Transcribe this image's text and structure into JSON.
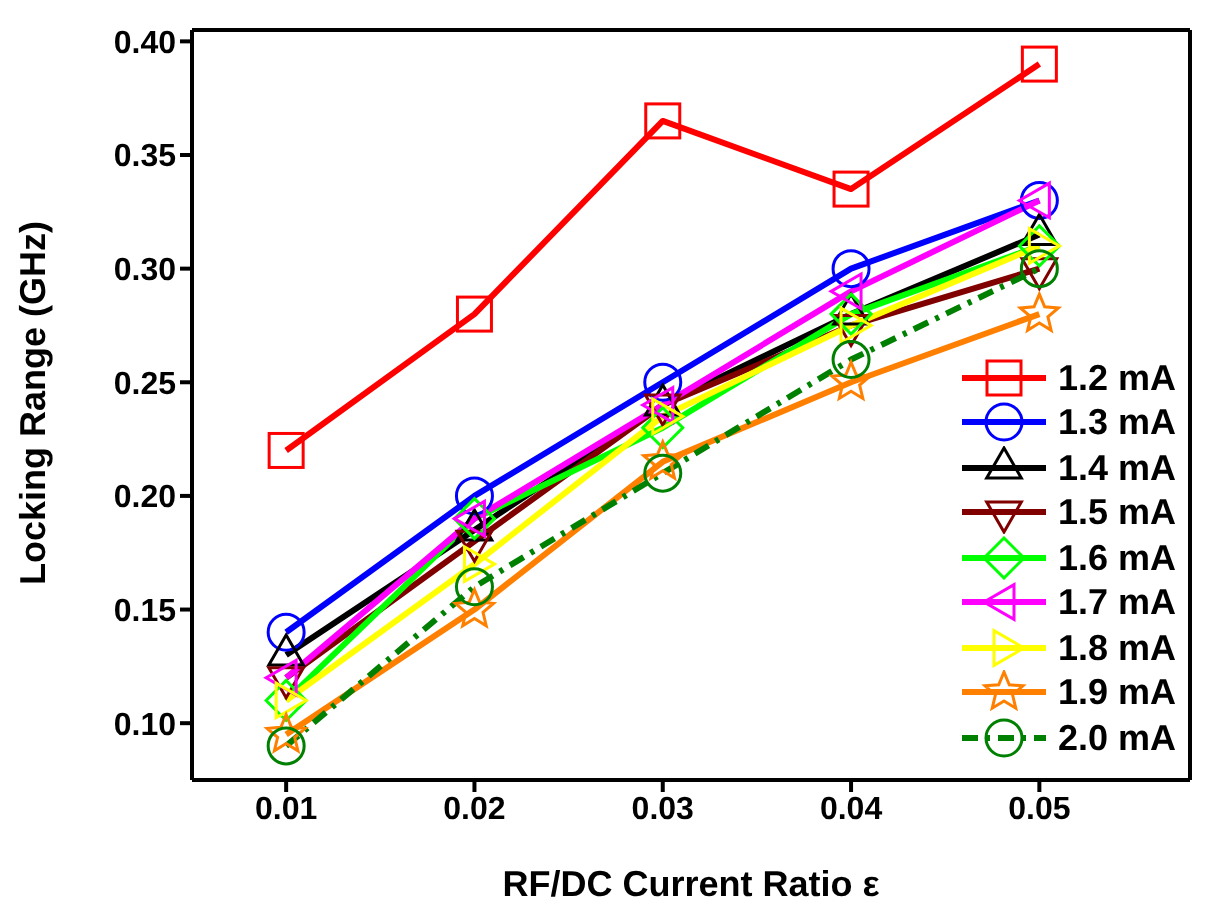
{
  "chart_data": {
    "type": "line",
    "xlabel": "RF/DC Current Ratio ε",
    "ylabel": "Locking Range (GHz)",
    "x": [
      0.01,
      0.02,
      0.03,
      0.04,
      0.05
    ],
    "xlim": [
      0.005,
      0.058
    ],
    "xticks": [
      0.01,
      0.02,
      0.03,
      0.04,
      0.05
    ],
    "ylim": [
      0.075,
      0.405
    ],
    "yticks": [
      {
        "value": 0.1,
        "label": "0.10"
      },
      {
        "value": 0.15,
        "label": "0.15"
      },
      {
        "value": 0.2,
        "label": "0.20"
      },
      {
        "value": 0.25,
        "label": "0.25"
      },
      {
        "value": 0.3,
        "label": "0.30"
      },
      {
        "value": 0.35,
        "label": "0.35"
      },
      {
        "value": 0.4,
        "label": "0.40"
      }
    ],
    "legend": "bottom right",
    "grid": false,
    "line_style": "solid",
    "series": [
      {
        "name": "1.2 mA",
        "color": "#ff0000",
        "marker": "square",
        "values": [
          0.22,
          0.28,
          0.365,
          0.335,
          0.39
        ]
      },
      {
        "name": "1.3 mA",
        "color": "#0000ff",
        "marker": "circle",
        "values": [
          0.14,
          0.2,
          0.25,
          0.3,
          0.33
        ]
      },
      {
        "name": "1.4 mA",
        "color": "#000000",
        "marker": "triangle",
        "values": [
          0.13,
          0.185,
          0.24,
          0.28,
          0.315
        ]
      },
      {
        "name": "1.5 mA",
        "color": "#800000",
        "marker": "triangle-down",
        "values": [
          0.12,
          0.18,
          0.24,
          0.275,
          0.3
        ]
      },
      {
        "name": "1.6 mA",
        "color": "#00ff00",
        "marker": "diamond",
        "values": [
          0.11,
          0.19,
          0.23,
          0.28,
          0.31
        ]
      },
      {
        "name": "1.7 mA",
        "color": "#ff00ff",
        "marker": "triangle-left",
        "values": [
          0.12,
          0.19,
          0.24,
          0.29,
          0.33
        ]
      },
      {
        "name": "1.8 mA",
        "color": "#ffff00",
        "marker": "triangle-right",
        "values": [
          0.11,
          0.17,
          0.235,
          0.275,
          0.31
        ]
      },
      {
        "name": "1.9 mA",
        "color": "#ff8000",
        "marker": "star",
        "values": [
          0.095,
          0.15,
          0.215,
          0.25,
          0.28
        ]
      },
      {
        "name": "2.0 mA",
        "color": "#008000",
        "marker": "circle",
        "line_style": "dashdot",
        "values": [
          0.09,
          0.16,
          0.21,
          0.26,
          0.3
        ]
      }
    ]
  }
}
